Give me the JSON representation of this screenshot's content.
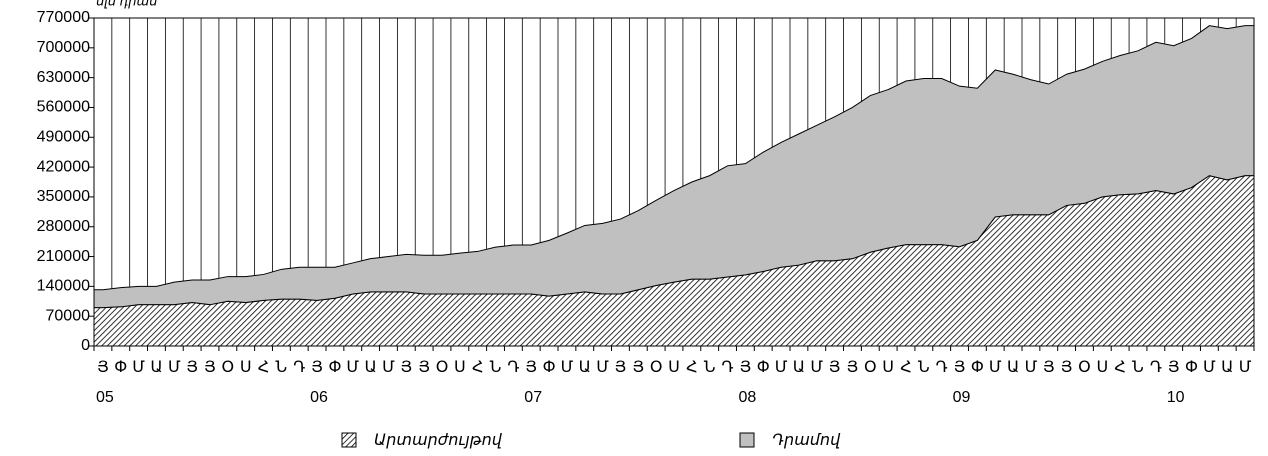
{
  "chart_data": {
    "type": "stacked-area",
    "unit_label": "մլն դրամ",
    "groups": [
      {
        "label": "05",
        "categories": [
          "Յ",
          "Փ",
          "Մ",
          "Ա",
          "Մ",
          "Յ",
          "Յ",
          "Օ",
          "Ս",
          "Հ",
          "Ն",
          "Դ"
        ]
      },
      {
        "label": "06",
        "categories": [
          "Յ",
          "Փ",
          "Մ",
          "Ա",
          "Մ",
          "Յ",
          "Յ",
          "Օ",
          "Ս",
          "Հ",
          "Ն",
          "Դ"
        ]
      },
      {
        "label": "07",
        "categories": [
          "Յ",
          "Փ",
          "Մ",
          "Ա",
          "Մ",
          "Յ",
          "Յ",
          "Օ",
          "Ս",
          "Հ",
          "Ն",
          "Դ"
        ]
      },
      {
        "label": "08",
        "categories": [
          "Յ",
          "Փ",
          "Մ",
          "Ա",
          "Մ",
          "Յ",
          "Յ",
          "Օ",
          "Ս",
          "Հ",
          "Ն",
          "Դ"
        ]
      },
      {
        "label": "09",
        "categories": [
          "Յ",
          "Փ",
          "Մ",
          "Ա",
          "Մ",
          "Յ",
          "Յ",
          "Օ",
          "Ս",
          "Հ",
          "Ն",
          "Դ"
        ]
      },
      {
        "label": "10",
        "categories": [
          "Յ",
          "Փ",
          "Մ",
          "Ա",
          "Մ"
        ]
      }
    ],
    "series": [
      {
        "name": "Արտարժույթով",
        "color": "#ffffff",
        "pattern": "hatch",
        "values": [
          90000,
          92000,
          97000,
          97000,
          97000,
          102000,
          97000,
          105000,
          102000,
          107000,
          110000,
          110000,
          107000,
          112000,
          122000,
          127000,
          127000,
          127000,
          122000,
          122000,
          122000,
          122000,
          122000,
          122000,
          122000,
          117000,
          122000,
          127000,
          122000,
          122000,
          132000,
          142000,
          150000,
          157000,
          157000,
          162000,
          167000,
          175000,
          185000,
          190000,
          200000,
          200000,
          205000,
          220000,
          230000,
          238000,
          238000,
          238000,
          233000,
          248000,
          303000,
          308000,
          308000,
          308000,
          330000,
          335000,
          350000,
          355000,
          357000,
          365000,
          357000,
          372000,
          400000,
          390000,
          400000
        ]
      },
      {
        "name": "Դրամով",
        "color": "#c0c0c0",
        "values": [
          42000,
          45000,
          43000,
          43000,
          53000,
          53000,
          58000,
          58000,
          61000,
          61000,
          70000,
          75000,
          78000,
          73000,
          73000,
          78000,
          83000,
          88000,
          91000,
          91000,
          96000,
          100000,
          110000,
          115000,
          115000,
          131000,
          143000,
          156000,
          166000,
          176000,
          186000,
          200000,
          215000,
          228000,
          243000,
          261000,
          261000,
          280000,
          293000,
          308000,
          318000,
          338000,
          355000,
          368000,
          372000,
          384000,
          390000,
          390000,
          377000,
          357000,
          345000,
          330000,
          317000,
          307000,
          308000,
          315000,
          318000,
          327000,
          336000,
          348000,
          348000,
          350000,
          352000,
          355000,
          352000
        ]
      }
    ],
    "ylim": [
      0,
      770000
    ],
    "yticks": [
      0,
      70000,
      140000,
      210000,
      280000,
      350000,
      420000,
      490000,
      560000,
      630000,
      700000,
      770000
    ]
  }
}
